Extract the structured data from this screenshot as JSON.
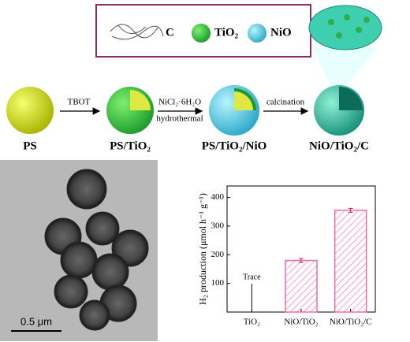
{
  "legend": {
    "items": [
      "C",
      "TiO₂",
      "NiO"
    ]
  },
  "scheme": {
    "stages": [
      "PS",
      "PS/TiO₂",
      "PS/TiO₂/NiO",
      "NiO/TiO₂/C"
    ],
    "steps": [
      "TBOT",
      "NiCl₂·6H₂O",
      "hydrothermal",
      "calcination"
    ]
  },
  "micrograph": {
    "scale_bar": "0.5 μm"
  },
  "chart_data": {
    "type": "bar",
    "y_label": "H₂ production (μmol h⁻¹ g⁻¹)",
    "categories": [
      "TiO₂",
      "NiO/TiO₂",
      "NiO/TiO₂/C"
    ],
    "values": [
      null,
      180,
      355
    ],
    "errors": [
      null,
      7,
      7
    ],
    "annotation": "Trace",
    "color": "#f06aa8",
    "ylim": [
      0,
      440
    ],
    "yticks": [
      100,
      200,
      300,
      400
    ]
  }
}
